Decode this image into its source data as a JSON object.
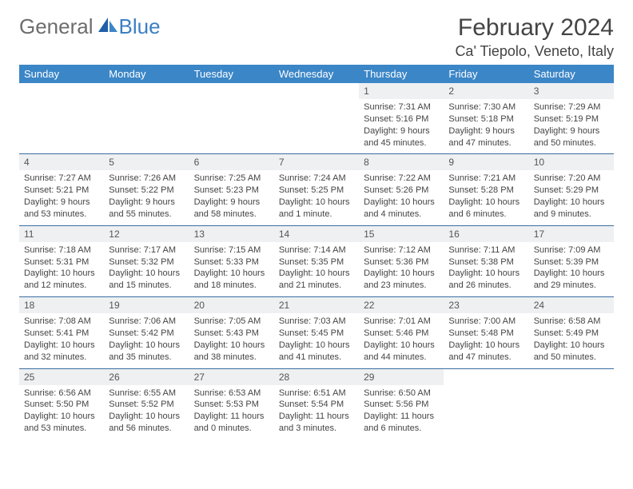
{
  "brand": {
    "word1": "General",
    "word2": "Blue"
  },
  "title": "February 2024",
  "location": "Ca' Tiepolo, Veneto, Italy",
  "colors": {
    "header_bg": "#3b86c7",
    "header_text": "#ffffff",
    "daynum_bg": "#eef0f2",
    "rule": "#3b6ea3",
    "brand_gray": "#6d6d6d",
    "brand_blue": "#3b7fc4"
  },
  "weekdays": [
    "Sunday",
    "Monday",
    "Tuesday",
    "Wednesday",
    "Thursday",
    "Friday",
    "Saturday"
  ],
  "weeks": [
    [
      null,
      null,
      null,
      null,
      {
        "n": "1",
        "sunrise": "7:31 AM",
        "sunset": "5:16 PM",
        "daylight": "9 hours and 45 minutes."
      },
      {
        "n": "2",
        "sunrise": "7:30 AM",
        "sunset": "5:18 PM",
        "daylight": "9 hours and 47 minutes."
      },
      {
        "n": "3",
        "sunrise": "7:29 AM",
        "sunset": "5:19 PM",
        "daylight": "9 hours and 50 minutes."
      }
    ],
    [
      {
        "n": "4",
        "sunrise": "7:27 AM",
        "sunset": "5:21 PM",
        "daylight": "9 hours and 53 minutes."
      },
      {
        "n": "5",
        "sunrise": "7:26 AM",
        "sunset": "5:22 PM",
        "daylight": "9 hours and 55 minutes."
      },
      {
        "n": "6",
        "sunrise": "7:25 AM",
        "sunset": "5:23 PM",
        "daylight": "9 hours and 58 minutes."
      },
      {
        "n": "7",
        "sunrise": "7:24 AM",
        "sunset": "5:25 PM",
        "daylight": "10 hours and 1 minute."
      },
      {
        "n": "8",
        "sunrise": "7:22 AM",
        "sunset": "5:26 PM",
        "daylight": "10 hours and 4 minutes."
      },
      {
        "n": "9",
        "sunrise": "7:21 AM",
        "sunset": "5:28 PM",
        "daylight": "10 hours and 6 minutes."
      },
      {
        "n": "10",
        "sunrise": "7:20 AM",
        "sunset": "5:29 PM",
        "daylight": "10 hours and 9 minutes."
      }
    ],
    [
      {
        "n": "11",
        "sunrise": "7:18 AM",
        "sunset": "5:31 PM",
        "daylight": "10 hours and 12 minutes."
      },
      {
        "n": "12",
        "sunrise": "7:17 AM",
        "sunset": "5:32 PM",
        "daylight": "10 hours and 15 minutes."
      },
      {
        "n": "13",
        "sunrise": "7:15 AM",
        "sunset": "5:33 PM",
        "daylight": "10 hours and 18 minutes."
      },
      {
        "n": "14",
        "sunrise": "7:14 AM",
        "sunset": "5:35 PM",
        "daylight": "10 hours and 21 minutes."
      },
      {
        "n": "15",
        "sunrise": "7:12 AM",
        "sunset": "5:36 PM",
        "daylight": "10 hours and 23 minutes."
      },
      {
        "n": "16",
        "sunrise": "7:11 AM",
        "sunset": "5:38 PM",
        "daylight": "10 hours and 26 minutes."
      },
      {
        "n": "17",
        "sunrise": "7:09 AM",
        "sunset": "5:39 PM",
        "daylight": "10 hours and 29 minutes."
      }
    ],
    [
      {
        "n": "18",
        "sunrise": "7:08 AM",
        "sunset": "5:41 PM",
        "daylight": "10 hours and 32 minutes."
      },
      {
        "n": "19",
        "sunrise": "7:06 AM",
        "sunset": "5:42 PM",
        "daylight": "10 hours and 35 minutes."
      },
      {
        "n": "20",
        "sunrise": "7:05 AM",
        "sunset": "5:43 PM",
        "daylight": "10 hours and 38 minutes."
      },
      {
        "n": "21",
        "sunrise": "7:03 AM",
        "sunset": "5:45 PM",
        "daylight": "10 hours and 41 minutes."
      },
      {
        "n": "22",
        "sunrise": "7:01 AM",
        "sunset": "5:46 PM",
        "daylight": "10 hours and 44 minutes."
      },
      {
        "n": "23",
        "sunrise": "7:00 AM",
        "sunset": "5:48 PM",
        "daylight": "10 hours and 47 minutes."
      },
      {
        "n": "24",
        "sunrise": "6:58 AM",
        "sunset": "5:49 PM",
        "daylight": "10 hours and 50 minutes."
      }
    ],
    [
      {
        "n": "25",
        "sunrise": "6:56 AM",
        "sunset": "5:50 PM",
        "daylight": "10 hours and 53 minutes."
      },
      {
        "n": "26",
        "sunrise": "6:55 AM",
        "sunset": "5:52 PM",
        "daylight": "10 hours and 56 minutes."
      },
      {
        "n": "27",
        "sunrise": "6:53 AM",
        "sunset": "5:53 PM",
        "daylight": "11 hours and 0 minutes."
      },
      {
        "n": "28",
        "sunrise": "6:51 AM",
        "sunset": "5:54 PM",
        "daylight": "11 hours and 3 minutes."
      },
      {
        "n": "29",
        "sunrise": "6:50 AM",
        "sunset": "5:56 PM",
        "daylight": "11 hours and 6 minutes."
      },
      null,
      null
    ]
  ],
  "labels": {
    "sunrise": "Sunrise: ",
    "sunset": "Sunset: ",
    "daylight": "Daylight: "
  }
}
